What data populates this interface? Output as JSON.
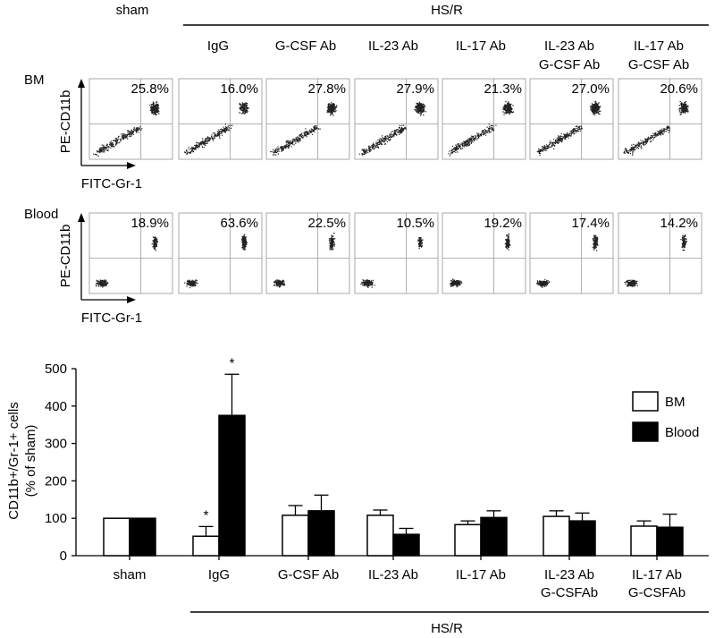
{
  "panel_top": {
    "sham_label": "sham",
    "hsr_label": "HS/R",
    "group_headers": [
      {
        "line1": "IgG",
        "line2": ""
      },
      {
        "line1": "G-CSF Ab",
        "line2": ""
      },
      {
        "line1": "IL-23 Ab",
        "line2": ""
      },
      {
        "line1": "IL-17 Ab",
        "line2": ""
      },
      {
        "line1": "IL-23 Ab",
        "line2": "G-CSF Ab"
      },
      {
        "line1": "IL-17 Ab",
        "line2": "G-CSF Ab"
      }
    ],
    "rows": [
      {
        "label": "BM",
        "y_axis": "PE-CD11b",
        "x_axis": "FITC-Gr-1",
        "percentages": [
          "25.8%",
          "16.0%",
          "27.8%",
          "27.9%",
          "21.3%",
          "27.0%",
          "20.6%"
        ],
        "density": [
          0.9,
          0.5,
          1.0,
          1.0,
          0.8,
          1.0,
          0.8
        ]
      },
      {
        "label": "Blood",
        "y_axis": "PE-CD11b",
        "x_axis": "FITC-Gr-1",
        "percentages": [
          "18.9%",
          "63.6%",
          "22.5%",
          "10.5%",
          "19.2%",
          "17.4%",
          "14.2%"
        ],
        "density": [
          0.5,
          1.0,
          0.5,
          0.35,
          0.5,
          0.5,
          0.4
        ]
      }
    ]
  },
  "chart_data": {
    "type": "bar",
    "ylabel_line1": "CD11b+/Gr-1+ cells",
    "ylabel_line2": "(% of sham)",
    "ylim": [
      0,
      500
    ],
    "yticks": [
      0,
      100,
      200,
      300,
      400,
      500
    ],
    "categories": [
      {
        "line1": "sham",
        "line2": ""
      },
      {
        "line1": "IgG",
        "line2": ""
      },
      {
        "line1": "G-CSF Ab",
        "line2": ""
      },
      {
        "line1": "IL-23 Ab",
        "line2": ""
      },
      {
        "line1": "IL-17 Ab",
        "line2": ""
      },
      {
        "line1": "IL-23 Ab",
        "line2": "G-CSFAb"
      },
      {
        "line1": "IL-17 Ab",
        "line2": "G-CSFAb"
      }
    ],
    "series": [
      {
        "name": "BM",
        "color": "#ffffff",
        "values": [
          100,
          52,
          108,
          108,
          83,
          105,
          79
        ],
        "errors": [
          0,
          26,
          26,
          14,
          10,
          15,
          14
        ],
        "significance": [
          "",
          "*",
          "",
          "",
          "",
          "",
          ""
        ]
      },
      {
        "name": "Blood",
        "color": "#000000",
        "values": [
          100,
          375,
          120,
          57,
          102,
          93,
          76
        ],
        "errors": [
          0,
          110,
          42,
          16,
          18,
          21,
          35
        ],
        "significance": [
          "",
          "*",
          "",
          "",
          "",
          "",
          ""
        ]
      }
    ],
    "group_label": "HS/R"
  }
}
